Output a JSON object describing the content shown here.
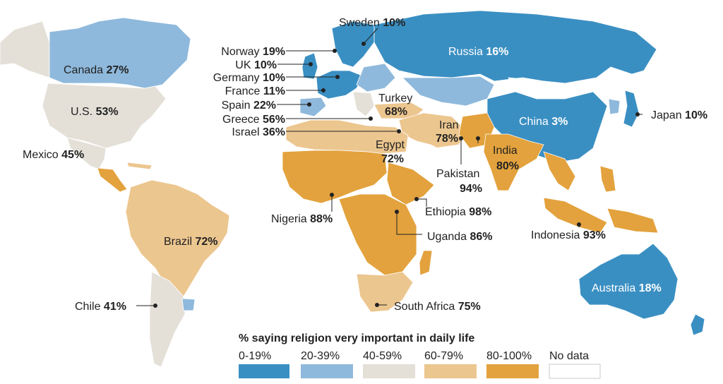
{
  "colors": {
    "c0": "#3a8fc2",
    "c20": "#8fb9dc",
    "c40": "#e4e0d8",
    "c60": "#ecc68f",
    "c80": "#e3a23d",
    "nodata": "#ffffff",
    "ocean": "#ffffff"
  },
  "legend": {
    "title": "% saying religion very important in daily life",
    "bins": [
      {
        "label": "0-19%",
        "color_key": "c0"
      },
      {
        "label": "20-39%",
        "color_key": "c20"
      },
      {
        "label": "40-59%",
        "color_key": "c40"
      },
      {
        "label": "60-79%",
        "color_key": "c60"
      },
      {
        "label": "80-100%",
        "color_key": "c80"
      },
      {
        "label": "No data",
        "color_key": "nodata"
      }
    ]
  },
  "countries": {
    "sweden": {
      "name": "Sweden",
      "value": "10%"
    },
    "norway": {
      "name": "Norway",
      "value": "19%"
    },
    "uk": {
      "name": "UK",
      "value": "10%"
    },
    "germany": {
      "name": "Germany",
      "value": "10%"
    },
    "france": {
      "name": "France",
      "value": "11%"
    },
    "spain": {
      "name": "Spain",
      "value": "22%"
    },
    "greece": {
      "name": "Greece",
      "value": "56%"
    },
    "israel": {
      "name": "Israel",
      "value": "36%"
    },
    "russia": {
      "name": "Russia",
      "value": "16%"
    },
    "canada": {
      "name": "Canada",
      "value": "27%"
    },
    "us": {
      "name": "U.S.",
      "value": "53%"
    },
    "mexico": {
      "name": "Mexico",
      "value": "45%"
    },
    "turkey": {
      "name": "Turkey",
      "value": "68%"
    },
    "iran": {
      "name": "Iran",
      "value": "78%"
    },
    "egypt": {
      "name": "Egypt",
      "value": "72%"
    },
    "china": {
      "name": "China",
      "value": "3%"
    },
    "japan": {
      "name": "Japan",
      "value": "10%"
    },
    "india": {
      "name": "India",
      "value": "80%"
    },
    "pakistan": {
      "name": "Pakistan",
      "value": "94%"
    },
    "nigeria": {
      "name": "Nigeria",
      "value": "88%"
    },
    "ethiopia": {
      "name": "Ethiopia",
      "value": "98%"
    },
    "uganda": {
      "name": "Uganda",
      "value": "86%"
    },
    "indonesia": {
      "name": "Indonesia",
      "value": "93%"
    },
    "brazil": {
      "name": "Brazil",
      "value": "72%"
    },
    "chile": {
      "name": "Chile",
      "value": "41%"
    },
    "south_africa": {
      "name": "South Africa",
      "value": "75%"
    },
    "australia": {
      "name": "Australia",
      "value": "18%"
    }
  }
}
